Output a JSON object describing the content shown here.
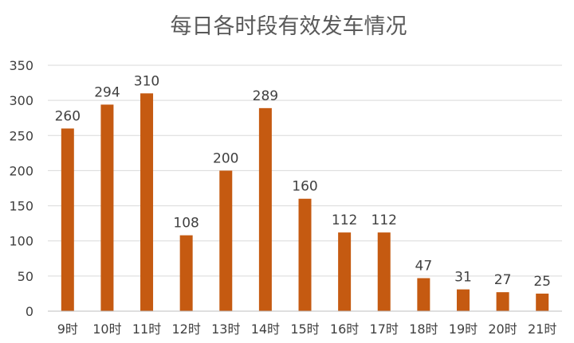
{
  "chart_data": {
    "type": "bar",
    "title": "每日各时段有效发车情况",
    "xlabel": "",
    "ylabel": "",
    "categories": [
      "9时",
      "10时",
      "11时",
      "12时",
      "13时",
      "14时",
      "15时",
      "16时",
      "17时",
      "18时",
      "19时",
      "20时",
      "21时"
    ],
    "values": [
      260,
      294,
      310,
      108,
      200,
      289,
      160,
      112,
      112,
      47,
      31,
      27,
      25
    ],
    "ylim": [
      0,
      350
    ],
    "yticks": [
      0,
      50,
      100,
      150,
      200,
      250,
      300,
      350
    ],
    "grid": true,
    "legend": "none",
    "bar_color": "#c55a11"
  }
}
